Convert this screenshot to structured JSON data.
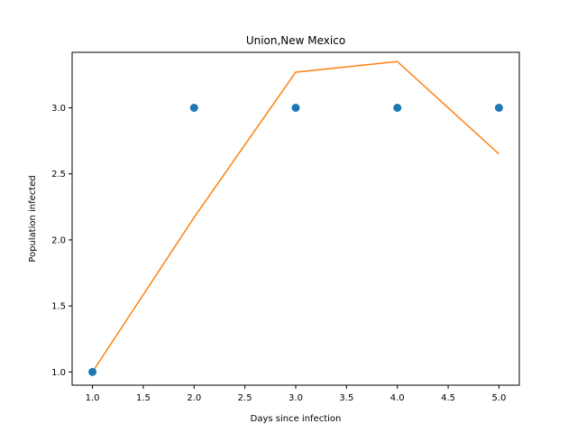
{
  "chart_data": {
    "type": "scatter",
    "title": "Union,New Mexico",
    "xlabel": "Days since infection",
    "ylabel": "Population infected",
    "xlim": [
      0.8,
      5.2
    ],
    "ylim": [
      0.9,
      3.42
    ],
    "grid": false,
    "x_ticks": [
      1.0,
      1.5,
      2.0,
      2.5,
      3.0,
      3.5,
      4.0,
      4.5,
      5.0
    ],
    "x_tick_labels": [
      "1.0",
      "1.5",
      "2.0",
      "2.5",
      "3.0",
      "3.5",
      "4.0",
      "4.5",
      "5.0"
    ],
    "y_ticks": [
      1.0,
      1.5,
      2.0,
      2.5,
      3.0
    ],
    "y_tick_labels": [
      "1.0",
      "1.5",
      "2.0",
      "2.5",
      "3.0"
    ],
    "series": [
      {
        "kind": "scatter",
        "color": "#1f77b4",
        "x": [
          1,
          2,
          3,
          4,
          5
        ],
        "y": [
          1,
          3,
          3,
          3,
          3
        ]
      },
      {
        "kind": "line",
        "color": "#ff7f0e",
        "x": [
          1,
          2,
          3,
          4,
          5
        ],
        "y": [
          1.0,
          2.17,
          3.27,
          3.35,
          2.65
        ]
      }
    ]
  }
}
